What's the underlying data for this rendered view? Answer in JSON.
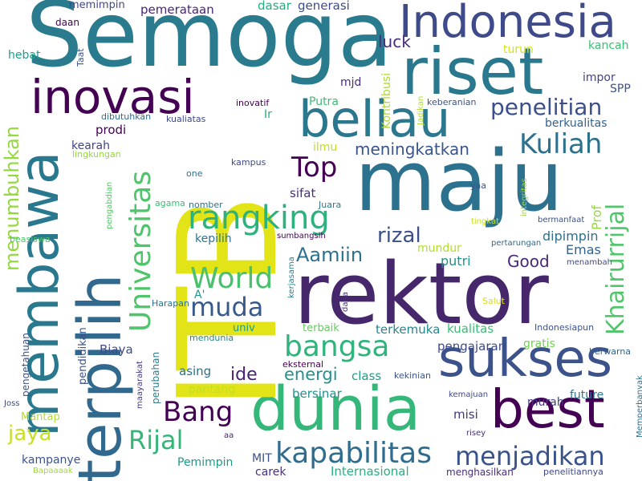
{
  "words": [
    {
      "text": "Semoga",
      "color": "#2b7b8e"
    },
    {
      "text": "Indonesia",
      "color": "#3e4a89"
    },
    {
      "text": "riset",
      "color": "#2a788e"
    },
    {
      "text": "inovasi",
      "color": "#440154"
    },
    {
      "text": "beliau",
      "color": "#2a778e"
    },
    {
      "text": "maju",
      "color": "#2c728e"
    },
    {
      "text": "rektor",
      "color": "#46276b"
    },
    {
      "text": "dunia",
      "color": "#35b779"
    },
    {
      "text": "sukses",
      "color": "#3b528b"
    },
    {
      "text": "best",
      "color": "#440154"
    },
    {
      "text": "membawa",
      "color": "#2a788e"
    },
    {
      "text": "terpilih",
      "color": "#31688e"
    },
    {
      "text": "ITB",
      "color": "#e3e418"
    },
    {
      "text": "rangking",
      "color": "#2db27d"
    },
    {
      "text": "bangsa",
      "color": "#2fb47c"
    },
    {
      "text": "kapabilitas",
      "color": "#2f6c8e"
    },
    {
      "text": "menjadikan",
      "color": "#3a538b"
    },
    {
      "text": "Kuliah",
      "color": "#2c728e"
    },
    {
      "text": "penelitian",
      "color": "#3c4f8a"
    },
    {
      "text": "Top",
      "color": "#440154"
    },
    {
      "text": "World",
      "color": "#4ac16d"
    },
    {
      "text": "muda",
      "color": "#38598c"
    },
    {
      "text": "Universitas",
      "color": "#4fc46a"
    },
    {
      "text": "Khairurrijal",
      "color": "#51c56a"
    },
    {
      "text": "menumbuhkan",
      "color": "#94d840"
    },
    {
      "text": "jaya",
      "color": "#c8e020"
    },
    {
      "text": "Rijal",
      "color": "#34b679"
    },
    {
      "text": "Bang",
      "color": "#440154"
    },
    {
      "text": "rizal",
      "color": "#3b518b"
    },
    {
      "text": "Aamiin",
      "color": "#2c728e"
    },
    {
      "text": "meningkatkan",
      "color": "#39568c"
    },
    {
      "text": "luck",
      "color": "#472c7a"
    },
    {
      "text": "ide",
      "color": "#482173"
    },
    {
      "text": "energi",
      "color": "#21918c"
    },
    {
      "text": "Good",
      "color": "#482878"
    },
    {
      "text": "Emas",
      "color": "#33638d"
    },
    {
      "text": "Prof",
      "color": "#95d840"
    },
    {
      "text": "dipimpin",
      "color": "#2c718e"
    },
    {
      "text": "putri",
      "color": "#20928c"
    },
    {
      "text": "mundur",
      "color": "#b0dd2f"
    },
    {
      "text": "sifat",
      "color": "#472f7d"
    },
    {
      "text": "kepilih",
      "color": "#2b758e"
    },
    {
      "text": "ilmu",
      "color": "#c2df23"
    },
    {
      "text": "Ir",
      "color": "#29af7f"
    },
    {
      "text": "Putra",
      "color": "#3dbc74"
    },
    {
      "text": "mjd",
      "color": "#472d7b"
    },
    {
      "text": "Kontribusi",
      "color": "#addc30"
    },
    {
      "text": "turun",
      "color": "#d2e21b"
    },
    {
      "text": "kancah",
      "color": "#3dbc74"
    },
    {
      "text": "impor",
      "color": "#414487"
    },
    {
      "text": "SPP",
      "color": "#3b528b"
    },
    {
      "text": "berkualitas",
      "color": "#33638d"
    },
    {
      "text": "generasi",
      "color": "#3e4c8a"
    },
    {
      "text": "dasar",
      "color": "#27ad81"
    },
    {
      "text": "pemerataan",
      "color": "#482576"
    },
    {
      "text": "memimpin",
      "color": "#3f4889"
    },
    {
      "text": "daan",
      "color": "#440154"
    },
    {
      "text": "hebat",
      "color": "#1f9e89"
    },
    {
      "text": "Taat",
      "color": "#3b528b"
    },
    {
      "text": "prodi",
      "color": "#440154"
    },
    {
      "text": "kearah",
      "color": "#414487"
    },
    {
      "text": "lingkungan",
      "color": "#95d840"
    },
    {
      "text": "kualiatas",
      "color": "#3e4989"
    },
    {
      "text": "dibutuhkan",
      "color": "#2e6e8e"
    },
    {
      "text": "inovatif",
      "color": "#440154"
    },
    {
      "text": "Jadikan",
      "color": "#addc30"
    },
    {
      "text": "keberanian",
      "color": "#3b528b"
    },
    {
      "text": "kampus",
      "color": "#3e4a89"
    },
    {
      "text": "one",
      "color": "#2e6f8e"
    },
    {
      "text": "integritas",
      "color": "#98d83e"
    },
    {
      "text": "yaa",
      "color": "#3b528b"
    },
    {
      "text": "agama",
      "color": "#3dbc74"
    },
    {
      "text": "nomber",
      "color": "#2c728e"
    },
    {
      "text": "Juara",
      "color": "#2a778e"
    },
    {
      "text": "tingkat",
      "color": "#c8e020"
    },
    {
      "text": "bermanfaat",
      "color": "#3a538b"
    },
    {
      "text": "pengabdian",
      "color": "#56c667"
    },
    {
      "text": "beasiswa",
      "color": "#4ec36b"
    },
    {
      "text": "sumbangsih",
      "color": "#440154"
    },
    {
      "text": "pertarungan",
      "color": "#30688e"
    },
    {
      "text": "menambah",
      "color": "#3e4a89"
    },
    {
      "text": "kerjasama",
      "color": "#287d8e"
    },
    {
      "text": "Harapan",
      "color": "#2c718e"
    },
    {
      "text": "A'",
      "color": "#1f988b"
    },
    {
      "text": "dana",
      "color": "#46307e"
    },
    {
      "text": "Salut",
      "color": "#d8e219"
    },
    {
      "text": "Indonesiapun",
      "color": "#3b528b"
    },
    {
      "text": "univ",
      "color": "#1f9a8a"
    },
    {
      "text": "mendunia",
      "color": "#25838e"
    },
    {
      "text": "terbaik",
      "color": "#63cb5f"
    },
    {
      "text": "terkemuka",
      "color": "#24878e"
    },
    {
      "text": "kualitas",
      "color": "#3bbb75"
    },
    {
      "text": "pengajaran",
      "color": "#3e4989"
    },
    {
      "text": "gratis",
      "color": "#75d054"
    },
    {
      "text": "berwarna",
      "color": "#32648e"
    },
    {
      "text": "pengetahuan",
      "color": "#3a538b"
    },
    {
      "text": "pendidikan",
      "color": "#3b528b"
    },
    {
      "text": "Biaya",
      "color": "#3e4a89"
    },
    {
      "text": "maayarakat",
      "color": "#453781"
    },
    {
      "text": "perubahan",
      "color": "#27808e"
    },
    {
      "text": "asing",
      "color": "#2d708e"
    },
    {
      "text": "eksternal",
      "color": "#440154"
    },
    {
      "text": "class",
      "color": "#1f9e89"
    },
    {
      "text": "kekinian",
      "color": "#39568c"
    },
    {
      "text": "kemajuan",
      "color": "#3e4989"
    },
    {
      "text": "murah",
      "color": "#443a83"
    },
    {
      "text": "future",
      "color": "#2a788e"
    },
    {
      "text": "Memperbanyak",
      "color": "#2d708e"
    },
    {
      "text": "Joss",
      "color": "#3e4a89"
    },
    {
      "text": "Mantap",
      "color": "#b5de2b"
    },
    {
      "text": "pantang",
      "color": "#c2df23"
    },
    {
      "text": "bersinar",
      "color": "#21918c"
    },
    {
      "text": "misi",
      "color": "#453781"
    },
    {
      "text": "aa",
      "color": "#482475"
    },
    {
      "text": "risey",
      "color": "#46307e"
    },
    {
      "text": "kampanye",
      "color": "#3a548c"
    },
    {
      "text": "leadership",
      "color": "#5ec962"
    },
    {
      "text": "Pemimpin",
      "color": "#1f988b"
    },
    {
      "text": "MIT",
      "color": "#3b528b"
    },
    {
      "text": "carek",
      "color": "#46317e"
    },
    {
      "text": "Internasional",
      "color": "#29af7f"
    },
    {
      "text": "menghasilkan",
      "color": "#472d7b"
    },
    {
      "text": "penelitiannya",
      "color": "#3e4a89"
    },
    {
      "text": "Bapaaaak",
      "color": "#a0da39"
    }
  ]
}
